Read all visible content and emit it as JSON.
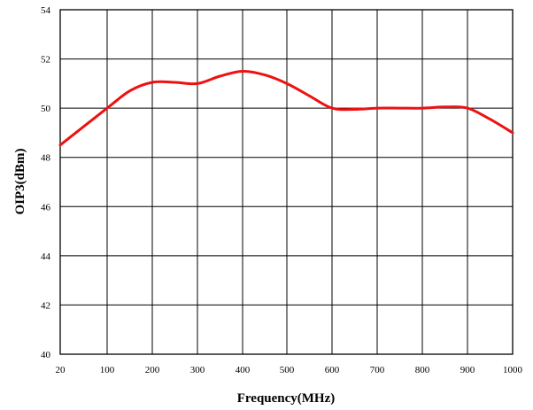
{
  "chart_data": {
    "type": "line",
    "title": "",
    "xlabel": "Frequency(MHz)",
    "ylabel": "OIP3(dBm)",
    "xlim": [
      20,
      1000
    ],
    "ylim": [
      40,
      54
    ],
    "x_ticks": [
      20,
      100,
      200,
      300,
      400,
      500,
      600,
      700,
      800,
      900,
      1000
    ],
    "y_ticks": [
      40,
      42,
      44,
      46,
      48,
      50,
      52,
      54
    ],
    "grid": true,
    "line_color": "#ee1111",
    "series": [
      {
        "x": [
          20,
          100,
          150,
          200,
          250,
          300,
          350,
          400,
          450,
          500,
          550,
          600,
          650,
          700,
          750,
          800,
          850,
          900,
          950,
          1000
        ],
        "values": [
          48.5,
          50.0,
          50.7,
          51.05,
          51.05,
          51.0,
          51.3,
          51.5,
          51.35,
          51.0,
          50.5,
          50.0,
          49.95,
          50.0,
          50.0,
          50.0,
          50.05,
          50.0,
          49.55,
          49.0
        ]
      }
    ]
  }
}
